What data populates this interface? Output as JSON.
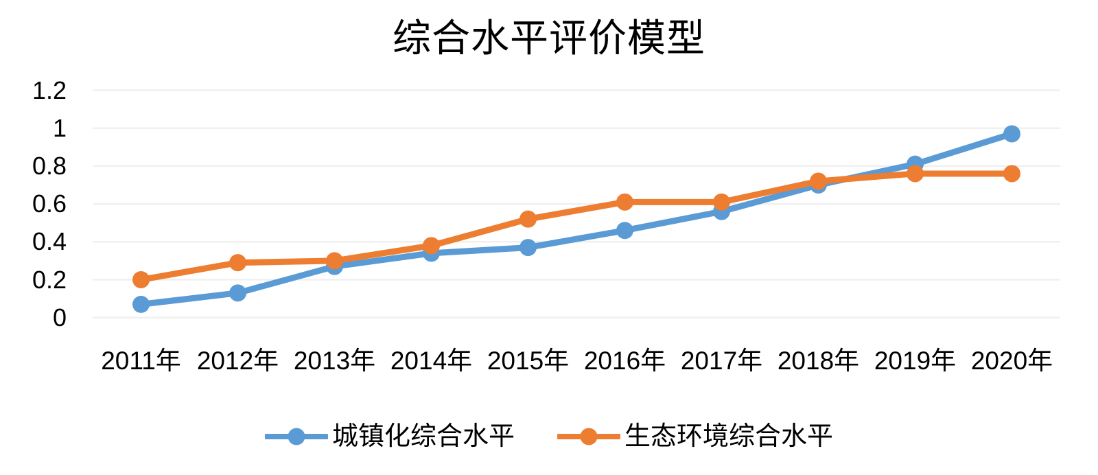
{
  "title": "综合水平评价模型",
  "colors": {
    "background": "#ffffff",
    "gridline": "#f0f0f0",
    "text": "#000000",
    "series_blue": "#5B9BD5",
    "series_orange": "#ED7D31"
  },
  "chart_data": {
    "type": "line",
    "title": "综合水平评价模型",
    "categories": [
      "2011年",
      "2012年",
      "2013年",
      "2014年",
      "2015年",
      "2016年",
      "2017年",
      "2018年",
      "2019年",
      "2020年"
    ],
    "series": [
      {
        "name": "城镇化综合水平",
        "color": "#5B9BD5",
        "values": [
          0.07,
          0.13,
          0.27,
          0.34,
          0.37,
          0.46,
          0.56,
          0.7,
          0.81,
          0.97
        ]
      },
      {
        "name": "生态环境综合水平",
        "color": "#ED7D31",
        "values": [
          0.2,
          0.29,
          0.3,
          0.38,
          0.52,
          0.61,
          0.61,
          0.72,
          0.76,
          0.76
        ]
      }
    ],
    "y_axis": {
      "tick_labels": [
        "1.2",
        "1",
        "0.8",
        "0.6",
        "0.4",
        "0.2",
        "0"
      ],
      "tick_values": [
        1.2,
        1.0,
        0.8,
        0.6,
        0.4,
        0.2,
        0
      ],
      "min": 0,
      "max": 1.2
    },
    "x_axis": {
      "tick_labels": [
        "2011年",
        "2012年",
        "2013年",
        "2014年",
        "2015年",
        "2016年",
        "2017年",
        "2018年",
        "2019年",
        "2020年"
      ]
    },
    "grid": true,
    "legend_position": "bottom",
    "marker": "circle"
  }
}
